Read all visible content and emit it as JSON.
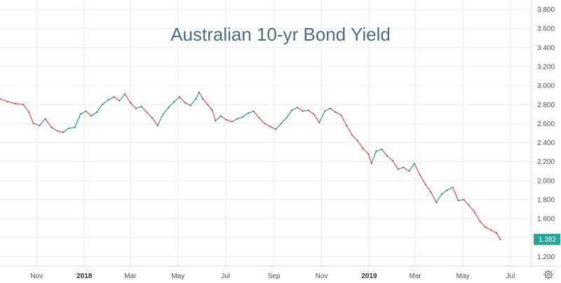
{
  "chart_data": {
    "type": "line",
    "title": "Australian 10-yr Bond Yield",
    "xlabel": "",
    "ylabel": "",
    "ylim": [
      1.1,
      3.9
    ],
    "yticks": [
      1.2,
      1.4,
      1.6,
      1.8,
      2.0,
      2.2,
      2.4,
      2.6,
      2.8,
      3.0,
      3.2,
      3.4,
      3.6,
      3.8
    ],
    "ytick_labels": [
      "1.200",
      "1.400",
      "1.600",
      "1.800",
      "2.000",
      "2.200",
      "2.400",
      "2.600",
      "2.800",
      "3.000",
      "3.200",
      "3.400",
      "3.600",
      "3.800"
    ],
    "xticks": [
      {
        "label": "Nov",
        "date": "2017-11-01",
        "bold": false
      },
      {
        "label": "2018",
        "date": "2018-01-01",
        "bold": true
      },
      {
        "label": "Mar",
        "date": "2018-03-01",
        "bold": false
      },
      {
        "label": "May",
        "date": "2018-05-01",
        "bold": false
      },
      {
        "label": "Jul",
        "date": "2018-07-01",
        "bold": false
      },
      {
        "label": "Sep",
        "date": "2018-09-01",
        "bold": false
      },
      {
        "label": "Nov",
        "date": "2018-11-01",
        "bold": false
      },
      {
        "label": "2019",
        "date": "2019-01-01",
        "bold": true
      },
      {
        "label": "Mar",
        "date": "2019-03-01",
        "bold": false
      },
      {
        "label": "May",
        "date": "2019-05-01",
        "bold": false
      },
      {
        "label": "Jul",
        "date": "2019-07-01",
        "bold": false
      }
    ],
    "xlim": [
      "2017-09-15",
      "2019-07-28"
    ],
    "grid": true,
    "last_value_label": "1.382",
    "colors": {
      "up": "#26a69a",
      "down": "#ef5350",
      "last_label_bg": "#26a69a",
      "title": "#4d6b80"
    },
    "series": [
      {
        "points": [
          [
            "2017-09-15",
            2.86
          ],
          [
            "2017-09-25",
            2.83
          ],
          [
            "2017-10-05",
            2.81
          ],
          [
            "2017-10-15",
            2.8
          ],
          [
            "2017-10-22",
            2.72
          ],
          [
            "2017-10-28",
            2.6
          ],
          [
            "2017-11-05",
            2.58
          ],
          [
            "2017-11-12",
            2.65
          ],
          [
            "2017-11-20",
            2.56
          ],
          [
            "2017-11-28",
            2.52
          ],
          [
            "2017-12-05",
            2.51
          ],
          [
            "2017-12-12",
            2.55
          ],
          [
            "2017-12-20",
            2.56
          ],
          [
            "2017-12-27",
            2.7
          ],
          [
            "2018-01-03",
            2.73
          ],
          [
            "2018-01-10",
            2.68
          ],
          [
            "2018-01-17",
            2.72
          ],
          [
            "2018-01-24",
            2.8
          ],
          [
            "2018-02-01",
            2.85
          ],
          [
            "2018-02-08",
            2.88
          ],
          [
            "2018-02-15",
            2.84
          ],
          [
            "2018-02-22",
            2.91
          ],
          [
            "2018-03-01",
            2.82
          ],
          [
            "2018-03-08",
            2.76
          ],
          [
            "2018-03-15",
            2.78
          ],
          [
            "2018-03-22",
            2.72
          ],
          [
            "2018-03-29",
            2.66
          ],
          [
            "2018-04-05",
            2.58
          ],
          [
            "2018-04-12",
            2.7
          ],
          [
            "2018-04-19",
            2.77
          ],
          [
            "2018-04-26",
            2.83
          ],
          [
            "2018-05-03",
            2.88
          ],
          [
            "2018-05-10",
            2.82
          ],
          [
            "2018-05-17",
            2.79
          ],
          [
            "2018-05-24",
            2.86
          ],
          [
            "2018-05-28",
            2.93
          ],
          [
            "2018-06-02",
            2.86
          ],
          [
            "2018-06-08",
            2.8
          ],
          [
            "2018-06-14",
            2.74
          ],
          [
            "2018-06-18",
            2.63
          ],
          [
            "2018-06-25",
            2.68
          ],
          [
            "2018-07-02",
            2.64
          ],
          [
            "2018-07-09",
            2.62
          ],
          [
            "2018-07-16",
            2.65
          ],
          [
            "2018-07-23",
            2.67
          ],
          [
            "2018-07-30",
            2.71
          ],
          [
            "2018-08-06",
            2.73
          ],
          [
            "2018-08-13",
            2.66
          ],
          [
            "2018-08-20",
            2.6
          ],
          [
            "2018-08-27",
            2.57
          ],
          [
            "2018-09-03",
            2.54
          ],
          [
            "2018-09-10",
            2.6
          ],
          [
            "2018-09-17",
            2.66
          ],
          [
            "2018-09-24",
            2.74
          ],
          [
            "2018-10-01",
            2.77
          ],
          [
            "2018-10-08",
            2.73
          ],
          [
            "2018-10-15",
            2.74
          ],
          [
            "2018-10-22",
            2.7
          ],
          [
            "2018-10-29",
            2.61
          ],
          [
            "2018-11-05",
            2.73
          ],
          [
            "2018-11-12",
            2.76
          ],
          [
            "2018-11-19",
            2.72
          ],
          [
            "2018-11-26",
            2.69
          ],
          [
            "2018-12-03",
            2.58
          ],
          [
            "2018-12-10",
            2.48
          ],
          [
            "2018-12-17",
            2.42
          ],
          [
            "2018-12-24",
            2.34
          ],
          [
            "2018-12-31",
            2.28
          ],
          [
            "2019-01-04",
            2.18
          ],
          [
            "2019-01-10",
            2.31
          ],
          [
            "2019-01-17",
            2.33
          ],
          [
            "2019-01-24",
            2.26
          ],
          [
            "2019-01-31",
            2.21
          ],
          [
            "2019-02-07",
            2.12
          ],
          [
            "2019-02-14",
            2.14
          ],
          [
            "2019-02-21",
            2.1
          ],
          [
            "2019-02-28",
            2.18
          ],
          [
            "2019-03-07",
            2.06
          ],
          [
            "2019-03-14",
            1.96
          ],
          [
            "2019-03-21",
            1.88
          ],
          [
            "2019-03-28",
            1.77
          ],
          [
            "2019-04-04",
            1.86
          ],
          [
            "2019-04-11",
            1.9
          ],
          [
            "2019-04-18",
            1.93
          ],
          [
            "2019-04-25",
            1.79
          ],
          [
            "2019-05-02",
            1.8
          ],
          [
            "2019-05-09",
            1.74
          ],
          [
            "2019-05-16",
            1.67
          ],
          [
            "2019-05-23",
            1.57
          ],
          [
            "2019-05-30",
            1.51
          ],
          [
            "2019-06-06",
            1.48
          ],
          [
            "2019-06-13",
            1.45
          ],
          [
            "2019-06-18",
            1.382
          ]
        ]
      }
    ]
  },
  "ui": {
    "settings_icon": "gear-icon"
  }
}
